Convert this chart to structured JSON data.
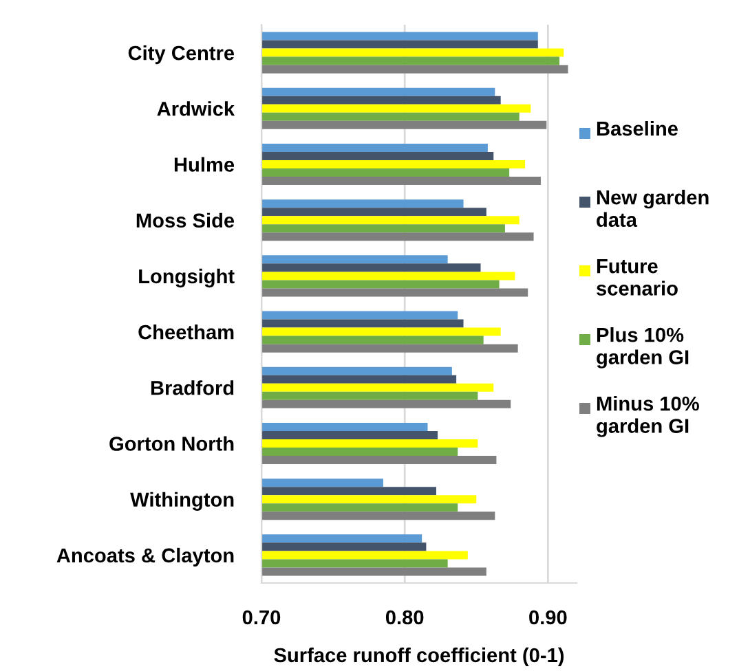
{
  "chart_data": {
    "type": "bar",
    "orientation": "horizontal",
    "xlabel": "Surface runoff coefficient (0-1)",
    "categories": [
      "City Centre",
      "Ardwick",
      "Hulme",
      "Moss Side",
      "Longsight",
      "Cheetham",
      "Bradford",
      "Gorton North",
      "Withington",
      "Ancoats & Clayton"
    ],
    "series": [
      {
        "name": "Baseline",
        "color": "#5b9bd5",
        "values": [
          0.893,
          0.863,
          0.858,
          0.841,
          0.83,
          0.837,
          0.833,
          0.816,
          0.785,
          0.812
        ]
      },
      {
        "name": "New garden data",
        "color": "#44546a",
        "values": [
          0.893,
          0.867,
          0.862,
          0.857,
          0.853,
          0.841,
          0.836,
          0.823,
          0.822,
          0.815
        ]
      },
      {
        "name": "Future scenario",
        "color": "#ffff00",
        "values": [
          0.911,
          0.888,
          0.884,
          0.88,
          0.877,
          0.867,
          0.862,
          0.851,
          0.85,
          0.844
        ]
      },
      {
        "name": "Plus 10% garden GI",
        "color": "#70ad47",
        "values": [
          0.908,
          0.88,
          0.873,
          0.87,
          0.866,
          0.855,
          0.851,
          0.837,
          0.837,
          0.83
        ]
      },
      {
        "name": "Minus 10% garden GI",
        "color": "#7f7f7f",
        "values": [
          0.914,
          0.899,
          0.895,
          0.89,
          0.886,
          0.879,
          0.874,
          0.864,
          0.863,
          0.857
        ]
      }
    ],
    "xlim": [
      0.7,
      0.92
    ],
    "xticks": [
      {
        "value": 0.7,
        "label": "0.70"
      },
      {
        "value": 0.8,
        "label": "0.80"
      },
      {
        "value": 0.9,
        "label": "0.90"
      }
    ],
    "grid": "x",
    "legend": "right"
  }
}
